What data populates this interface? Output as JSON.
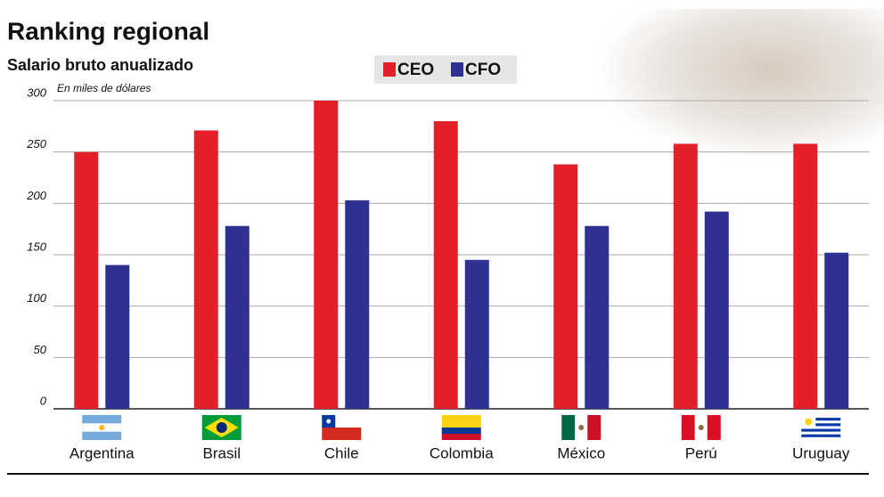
{
  "chart_data": {
    "type": "bar",
    "title": "Ranking regional",
    "subtitle": "Salario bruto anualizado",
    "y_label": "En miles de dólares",
    "categories": [
      "Argentina",
      "Brasil",
      "Chile",
      "Colombia",
      "México",
      "Perú",
      "Uruguay"
    ],
    "series": [
      {
        "name": "CEO",
        "color": "#e3202a",
        "values": [
          250,
          271,
          300,
          280,
          238,
          258,
          258
        ]
      },
      {
        "name": "CFO",
        "color": "#2e3192",
        "values": [
          140,
          178,
          203,
          145,
          178,
          192,
          152
        ]
      }
    ],
    "ylim": [
      0,
      300
    ],
    "yticks": [
      0,
      50,
      100,
      150,
      200,
      250,
      300
    ],
    "grid": true
  }
}
